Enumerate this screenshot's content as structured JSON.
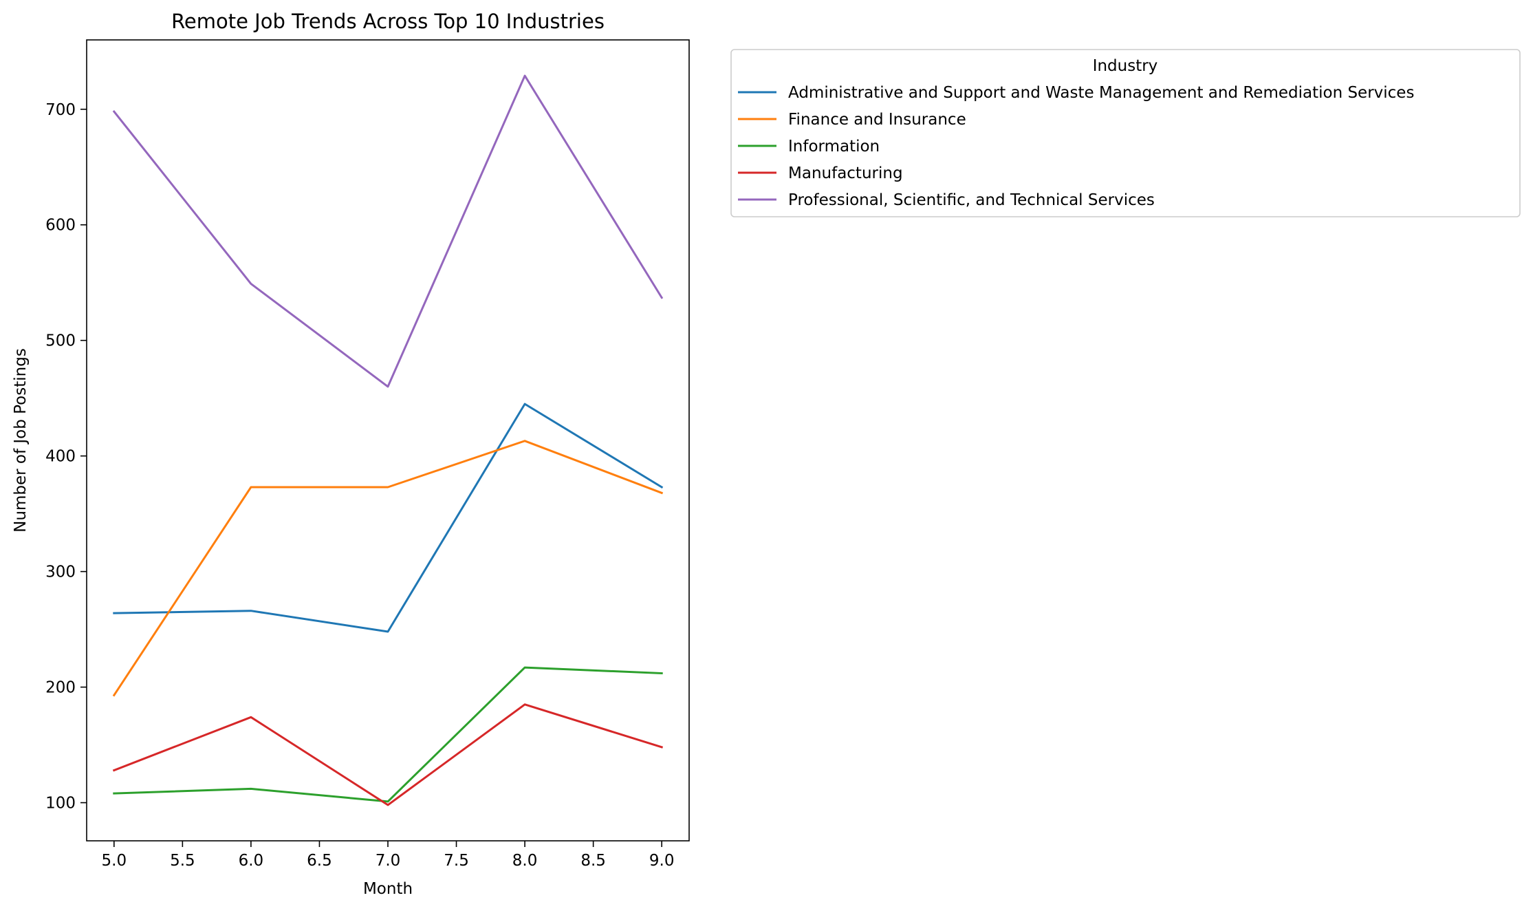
{
  "chart_data": {
    "type": "line",
    "title": "Remote Job Trends Across Top 10 Industries",
    "xlabel": "Month",
    "ylabel": "Number of Job Postings",
    "x": [
      5.0,
      6.0,
      7.0,
      8.0,
      9.0
    ],
    "xlim": [
      4.8,
      9.2
    ],
    "ylim": [
      67,
      760
    ],
    "xticks": [
      "5.0",
      "5.5",
      "6.0",
      "6.5",
      "7.0",
      "7.5",
      "8.0",
      "8.5",
      "9.0"
    ],
    "yticks": [
      "100",
      "200",
      "300",
      "400",
      "500",
      "600",
      "700"
    ],
    "grid": false,
    "legend": {
      "title": "Industry",
      "placement": "outside-right-top"
    },
    "series": [
      {
        "name": "Administrative and Support and Waste Management and Remediation Services",
        "color": "#1f77b4",
        "values": [
          264,
          266,
          248,
          445,
          373
        ]
      },
      {
        "name": "Finance and Insurance",
        "color": "#ff7f0e",
        "values": [
          193,
          373,
          373,
          413,
          368
        ]
      },
      {
        "name": "Information",
        "color": "#2ca02c",
        "values": [
          108,
          112,
          101,
          217,
          212
        ]
      },
      {
        "name": "Manufacturing",
        "color": "#d62728",
        "values": [
          128,
          174,
          98,
          185,
          148
        ]
      },
      {
        "name": "Professional, Scientific, and Technical Services",
        "color": "#9467bd",
        "values": [
          698,
          549,
          460,
          729,
          537
        ]
      }
    ]
  }
}
